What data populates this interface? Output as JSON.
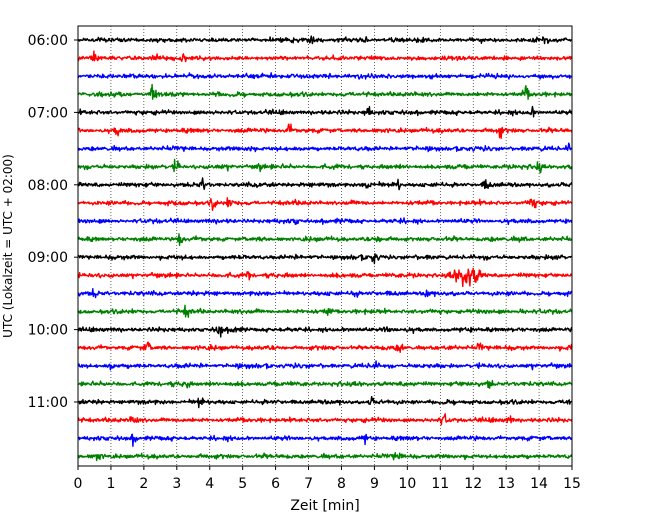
{
  "chart_data": {
    "type": "line",
    "title": "",
    "xlabel": "Zeit  [min]",
    "ylabel": "UTC (Lokalzeit = UTC + 02:00)",
    "xlim": [
      0,
      15
    ],
    "x_ticks": [
      "0",
      "1",
      "2",
      "3",
      "4",
      "5",
      "6",
      "7",
      "8",
      "9",
      "10",
      "11",
      "12",
      "13",
      "14",
      "15"
    ],
    "y_ticks": [
      "06:00",
      "07:00",
      "08:00",
      "09:00",
      "10:00",
      "11:00"
    ],
    "grid_x": "dotted",
    "trace_colors": [
      "#000000",
      "#ff0000",
      "#0000ff",
      "#008000"
    ],
    "series": [
      {
        "start": "06:00",
        "color": "#000000",
        "events": [
          {
            "t": 7.1,
            "amp": 0.7
          },
          {
            "t": 14.2,
            "amp": 0.5
          }
        ]
      },
      {
        "start": "06:15",
        "color": "#ff0000",
        "events": [
          {
            "t": 0.5,
            "amp": 0.3
          },
          {
            "t": 3.2,
            "amp": 0.6
          }
        ]
      },
      {
        "start": "06:30",
        "color": "#0000ff",
        "events": [
          {
            "t": 8.5,
            "amp": 0.2
          }
        ]
      },
      {
        "start": "06:45",
        "color": "#008000",
        "events": [
          {
            "t": 2.3,
            "amp": 0.7
          },
          {
            "t": 13.6,
            "amp": 0.6
          }
        ]
      },
      {
        "start": "07:00",
        "color": "#000000",
        "events": [
          {
            "t": 8.8,
            "amp": 0.7
          },
          {
            "t": 13.8,
            "amp": 0.4
          }
        ]
      },
      {
        "start": "07:15",
        "color": "#ff0000",
        "events": [
          {
            "t": 1.2,
            "amp": 0.45
          },
          {
            "t": 6.4,
            "amp": 0.5
          },
          {
            "t": 12.8,
            "amp": 0.6
          }
        ]
      },
      {
        "start": "07:30",
        "color": "#0000ff",
        "events": [
          {
            "t": 5.2,
            "amp": 0.35
          },
          {
            "t": 14.9,
            "amp": 0.3
          }
        ]
      },
      {
        "start": "07:45",
        "color": "#008000",
        "events": [
          {
            "t": 3.0,
            "amp": 0.6
          },
          {
            "t": 5.5,
            "amp": 0.3
          },
          {
            "t": 14.0,
            "amp": 0.5
          }
        ]
      },
      {
        "start": "08:00",
        "color": "#000000",
        "events": [
          {
            "t": 3.8,
            "amp": 0.4
          },
          {
            "t": 8.8,
            "amp": 0.45
          },
          {
            "t": 9.7,
            "amp": 0.5
          },
          {
            "t": 12.4,
            "amp": 0.4
          }
        ]
      },
      {
        "start": "08:15",
        "color": "#ff0000",
        "events": [
          {
            "t": 4.1,
            "amp": 0.6
          },
          {
            "t": 4.6,
            "amp": 0.4
          },
          {
            "t": 13.8,
            "amp": 0.7
          }
        ]
      },
      {
        "start": "08:30",
        "color": "#0000ff",
        "events": [
          {
            "t": 6.6,
            "amp": 0.2
          }
        ]
      },
      {
        "start": "08:45",
        "color": "#008000",
        "events": [
          {
            "t": 3.1,
            "amp": 0.7
          },
          {
            "t": 9.1,
            "amp": 0.3
          },
          {
            "t": 13.5,
            "amp": 0.3
          }
        ]
      },
      {
        "start": "09:00",
        "color": "#000000",
        "events": [
          {
            "t": 9.0,
            "amp": 0.5
          },
          {
            "t": 14.6,
            "amp": 0.3
          }
        ]
      },
      {
        "start": "09:15",
        "color": "#ff0000",
        "events": [
          {
            "t": 5.2,
            "amp": 0.5
          },
          {
            "t": 11.8,
            "amp": 0.9
          }
        ]
      },
      {
        "start": "09:30",
        "color": "#0000ff",
        "events": [
          {
            "t": 0.5,
            "amp": 0.35
          },
          {
            "t": 8.4,
            "amp": 0.5
          },
          {
            "t": 10.6,
            "amp": 0.35
          }
        ]
      },
      {
        "start": "09:45",
        "color": "#008000",
        "events": [
          {
            "t": 3.3,
            "amp": 0.45
          },
          {
            "t": 7.6,
            "amp": 0.45
          },
          {
            "t": 13.5,
            "amp": 0.35
          }
        ]
      },
      {
        "start": "10:00",
        "color": "#000000",
        "events": [
          {
            "t": 4.3,
            "amp": 0.6
          },
          {
            "t": 4.8,
            "amp": 0.35
          },
          {
            "t": 9.4,
            "amp": 0.4
          }
        ]
      },
      {
        "start": "10:15",
        "color": "#ff0000",
        "events": [
          {
            "t": 2.1,
            "amp": 0.5
          },
          {
            "t": 9.8,
            "amp": 0.4
          },
          {
            "t": 12.2,
            "amp": 0.35
          },
          {
            "t": 15.0,
            "amp": 0.35
          }
        ]
      },
      {
        "start": "10:30",
        "color": "#0000ff",
        "events": [
          {
            "t": 1.0,
            "amp": 0.3
          },
          {
            "t": 9.0,
            "amp": 0.35
          }
        ]
      },
      {
        "start": "10:45",
        "color": "#008000",
        "events": [
          {
            "t": 3.3,
            "amp": 0.5
          },
          {
            "t": 12.5,
            "amp": 0.4
          }
        ]
      },
      {
        "start": "11:00",
        "color": "#000000",
        "events": [
          {
            "t": 3.7,
            "amp": 0.45
          },
          {
            "t": 8.9,
            "amp": 0.35
          },
          {
            "t": 14.9,
            "amp": 0.35
          }
        ]
      },
      {
        "start": "11:15",
        "color": "#ff0000",
        "events": [
          {
            "t": 1.7,
            "amp": 0.5
          },
          {
            "t": 11.1,
            "amp": 0.5
          },
          {
            "t": 13.1,
            "amp": 0.35
          }
        ]
      },
      {
        "start": "11:30",
        "color": "#0000ff",
        "events": [
          {
            "t": 1.7,
            "amp": 0.35
          },
          {
            "t": 8.7,
            "amp": 0.35
          }
        ]
      },
      {
        "start": "11:45",
        "color": "#008000",
        "events": [
          {
            "t": 0.6,
            "amp": 0.35
          },
          {
            "t": 9.7,
            "amp": 0.4
          }
        ]
      }
    ]
  }
}
